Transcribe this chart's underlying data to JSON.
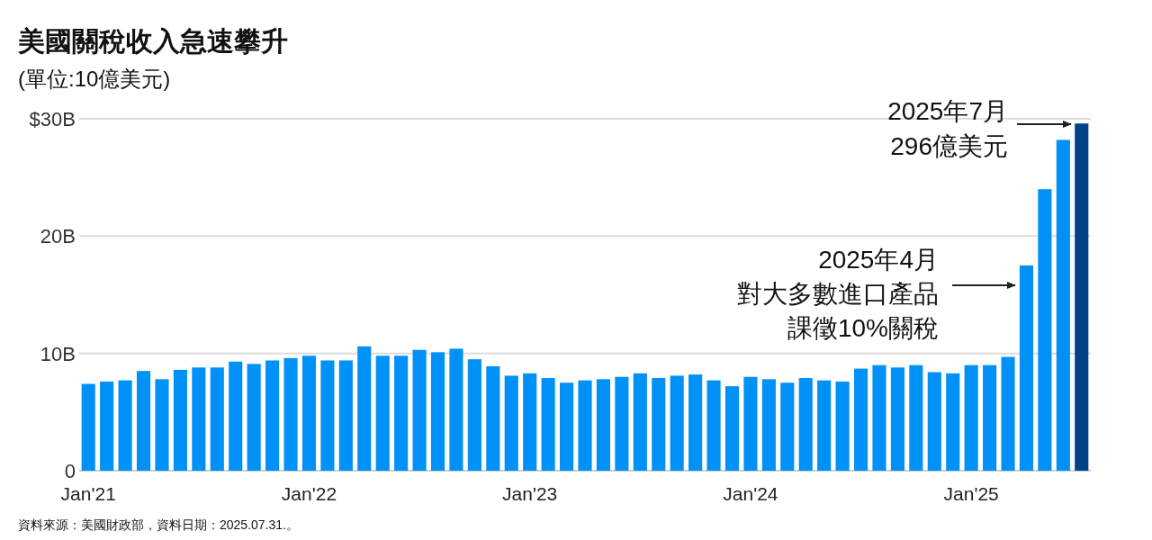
{
  "chart_data": {
    "type": "bar",
    "title": "美國關稅收入急速攀升",
    "subtitle": "(單位:10億美元)",
    "categories": [
      "Jan'21",
      null,
      null,
      null,
      null,
      null,
      null,
      null,
      null,
      null,
      null,
      null,
      "Jan'22",
      null,
      null,
      null,
      null,
      null,
      null,
      null,
      null,
      null,
      null,
      null,
      "Jan'23",
      null,
      null,
      null,
      null,
      null,
      null,
      null,
      null,
      null,
      null,
      null,
      "Jan'24",
      null,
      null,
      null,
      null,
      null,
      null,
      null,
      null,
      null,
      null,
      null,
      "Jan'25",
      null,
      null,
      null,
      null,
      null,
      null
    ],
    "values": [
      7.4,
      7.6,
      7.7,
      8.5,
      7.8,
      8.6,
      8.8,
      8.8,
      9.3,
      9.1,
      9.4,
      9.6,
      9.8,
      9.4,
      9.4,
      10.6,
      9.8,
      9.8,
      10.3,
      10.1,
      10.4,
      9.5,
      8.9,
      8.1,
      8.3,
      7.9,
      7.5,
      7.7,
      7.8,
      8.0,
      8.3,
      7.9,
      8.1,
      8.2,
      7.7,
      7.2,
      8.0,
      7.8,
      7.5,
      7.9,
      7.7,
      7.6,
      8.7,
      9.0,
      8.8,
      9.0,
      8.4,
      8.3,
      9.0,
      9.0,
      9.7,
      17.5,
      24.0,
      28.2,
      29.6
    ],
    "colors": [
      "#0091f7",
      "#0091f7",
      "#0091f7",
      "#0091f7",
      "#0091f7",
      "#0091f7",
      "#0091f7",
      "#0091f7",
      "#0091f7",
      "#0091f7",
      "#0091f7",
      "#0091f7",
      "#0091f7",
      "#0091f7",
      "#0091f7",
      "#0091f7",
      "#0091f7",
      "#0091f7",
      "#0091f7",
      "#0091f7",
      "#0091f7",
      "#0091f7",
      "#0091f7",
      "#0091f7",
      "#0091f7",
      "#0091f7",
      "#0091f7",
      "#0091f7",
      "#0091f7",
      "#0091f7",
      "#0091f7",
      "#0091f7",
      "#0091f7",
      "#0091f7",
      "#0091f7",
      "#0091f7",
      "#0091f7",
      "#0091f7",
      "#0091f7",
      "#0091f7",
      "#0091f7",
      "#0091f7",
      "#0091f7",
      "#0091f7",
      "#0091f7",
      "#0091f7",
      "#0091f7",
      "#0091f7",
      "#0091f7",
      "#0091f7",
      "#0091f7",
      "#0091f7",
      "#0091f7",
      "#0091f7",
      "#00428a"
    ],
    "ylim": [
      0,
      30
    ],
    "yticks": [
      0,
      {
        "value": 10,
        "label": "10B"
      },
      {
        "value": 20,
        "label": "20B"
      },
      {
        "value": 30,
        "label": "$30B"
      }
    ],
    "grid": "y",
    "annotations": [
      "2025年7月",
      "296億美元",
      "2025年4月",
      "對大多數進口產品",
      "課徵10%關稅",
      "資料來源：美國財政部，資料日期：2025.07.31.。"
    ]
  }
}
